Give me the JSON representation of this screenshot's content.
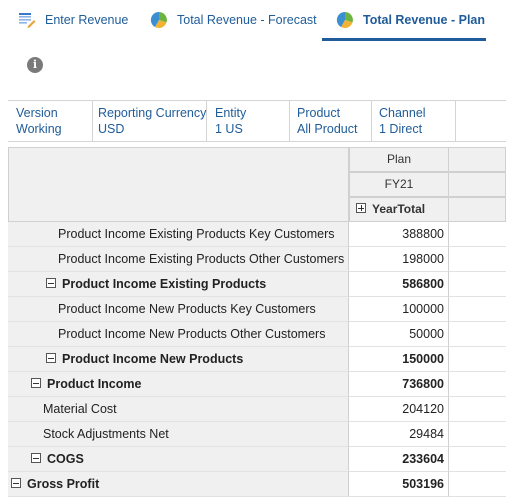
{
  "tabs": [
    {
      "label": "Enter Revenue",
      "icon": "grid-edit-icon"
    },
    {
      "label": "Total Revenue - Forecast",
      "icon": "pie-chart-icon"
    },
    {
      "label": "Total Revenue - Plan",
      "icon": "pie-chart-icon",
      "active": true
    }
  ],
  "pov": [
    {
      "key": "Version",
      "value": "Working"
    },
    {
      "key": "Reporting Currency",
      "value": "USD"
    },
    {
      "key": "Entity",
      "value": "1 US"
    },
    {
      "key": "Product",
      "value": "All Product"
    },
    {
      "key": "Channel",
      "value": "1 Direct"
    }
  ],
  "grid": {
    "headers": {
      "scenario": "Plan",
      "year": "FY21",
      "period": "YearTotal"
    },
    "rows": [
      {
        "label": "Product Income Existing Products Key Customers",
        "value": "388800"
      },
      {
        "label": "Product Income Existing Products Other Customers",
        "value": "198000"
      },
      {
        "label": "Product Income Existing Products",
        "value": "586800"
      },
      {
        "label": "Product Income New Products Key Customers",
        "value": "100000"
      },
      {
        "label": "Product Income New Products Other Customers",
        "value": "50000"
      },
      {
        "label": "Product Income New Products",
        "value": "150000"
      },
      {
        "label": "Product Income",
        "value": "736800"
      },
      {
        "label": "Material Cost",
        "value": "204120"
      },
      {
        "label": "Stock Adjustments Net",
        "value": "29484"
      },
      {
        "label": "COGS",
        "value": "233604"
      },
      {
        "label": "Gross Profit",
        "value": "503196"
      }
    ]
  },
  "colors": {
    "accent": "#1f5c99",
    "header_bg": "#f0f0f0",
    "border": "#d0d0d0"
  }
}
